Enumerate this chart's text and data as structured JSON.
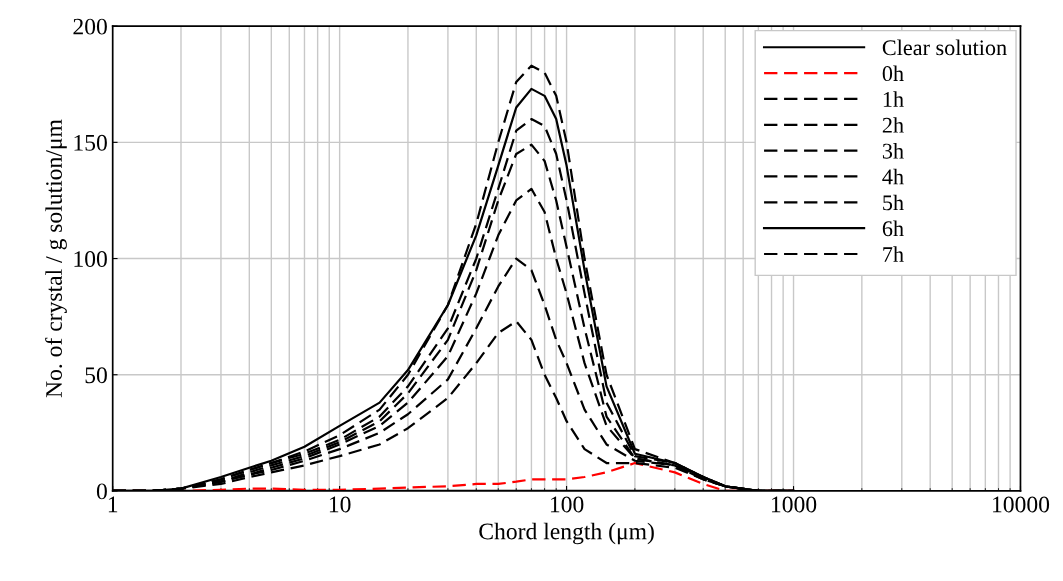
{
  "chart_data": {
    "type": "line",
    "xlabel": "Chord length (μm)",
    "ylabel": "No. of crystal / g solution/μm",
    "x": [
      1,
      1.5,
      2,
      3,
      4,
      5,
      7,
      10,
      15,
      20,
      30,
      40,
      50,
      60,
      70,
      80,
      90,
      100,
      120,
      150,
      200,
      300,
      400,
      500,
      700,
      1000
    ],
    "series": [
      {
        "name": "Clear solution",
        "color": "#000000",
        "line_style": "solid",
        "values": [
          0,
          0,
          0,
          0,
          0,
          0,
          0,
          0,
          0,
          0,
          0,
          0,
          0,
          0,
          0,
          0,
          0,
          0,
          0,
          0,
          0,
          0,
          0,
          0,
          0,
          0
        ]
      },
      {
        "name": "0h",
        "color": "#ff0000",
        "line_style": "dashed",
        "values": [
          0,
          0,
          0,
          0.5,
          1,
          1,
          0.5,
          0.5,
          1,
          1.5,
          2,
          3,
          3,
          4,
          5,
          5,
          5,
          5,
          6,
          8,
          12,
          8,
          3,
          0,
          0,
          0
        ]
      },
      {
        "name": "1h",
        "color": "#000000",
        "line_style": "dashed",
        "values": [
          0,
          0,
          1,
          3,
          6,
          8,
          11,
          15,
          20,
          27,
          40,
          55,
          68,
          73,
          65,
          50,
          40,
          30,
          18,
          12,
          12,
          10,
          5,
          2,
          0,
          0
        ]
      },
      {
        "name": "2h",
        "color": "#000000",
        "line_style": "dashed",
        "values": [
          0,
          0,
          1,
          4,
          7,
          9,
          13,
          18,
          25,
          33,
          48,
          70,
          88,
          100,
          95,
          80,
          65,
          55,
          35,
          20,
          13,
          11,
          5,
          2,
          0,
          0
        ]
      },
      {
        "name": "3h",
        "color": "#000000",
        "line_style": "dashed",
        "values": [
          0,
          0,
          1,
          4,
          7,
          10,
          14,
          20,
          28,
          38,
          58,
          85,
          110,
          125,
          130,
          120,
          100,
          85,
          55,
          28,
          14,
          11,
          5,
          2,
          0,
          0
        ]
      },
      {
        "name": "4h",
        "color": "#000000",
        "line_style": "dashed",
        "values": [
          0,
          0,
          1,
          4,
          8,
          11,
          15,
          21,
          30,
          42,
          65,
          95,
          125,
          145,
          149,
          142,
          125,
          105,
          70,
          32,
          14,
          11,
          6,
          2,
          0,
          0
        ]
      },
      {
        "name": "5h",
        "color": "#000000",
        "line_style": "dashed",
        "values": [
          0,
          0,
          1,
          5,
          9,
          12,
          16,
          22,
          32,
          45,
          70,
          100,
          130,
          155,
          160,
          157,
          145,
          125,
          85,
          38,
          15,
          12,
          6,
          2,
          0,
          0
        ]
      },
      {
        "name": "6h",
        "color": "#000000",
        "line_style": "solid",
        "values": [
          0,
          0,
          1,
          6,
          10,
          13,
          19,
          28,
          38,
          52,
          80,
          110,
          140,
          165,
          173,
          170,
          160,
          140,
          95,
          45,
          16,
          12,
          6,
          2,
          0,
          0
        ]
      },
      {
        "name": "7h",
        "color": "#000000",
        "line_style": "dashed",
        "values": [
          0,
          0,
          1,
          5,
          9,
          12,
          17,
          24,
          35,
          50,
          80,
          115,
          150,
          176,
          183,
          180,
          170,
          150,
          100,
          50,
          18,
          12,
          6,
          2,
          0,
          0
        ]
      }
    ],
    "log": "x",
    "xlim": [
      1,
      10000
    ],
    "xticks": [
      1,
      10,
      100,
      1000,
      10000
    ],
    "ylim": [
      0,
      200
    ],
    "yticks": [
      0,
      50,
      100,
      150,
      200
    ],
    "grid": true,
    "legend": "top right",
    "marker": "none"
  }
}
